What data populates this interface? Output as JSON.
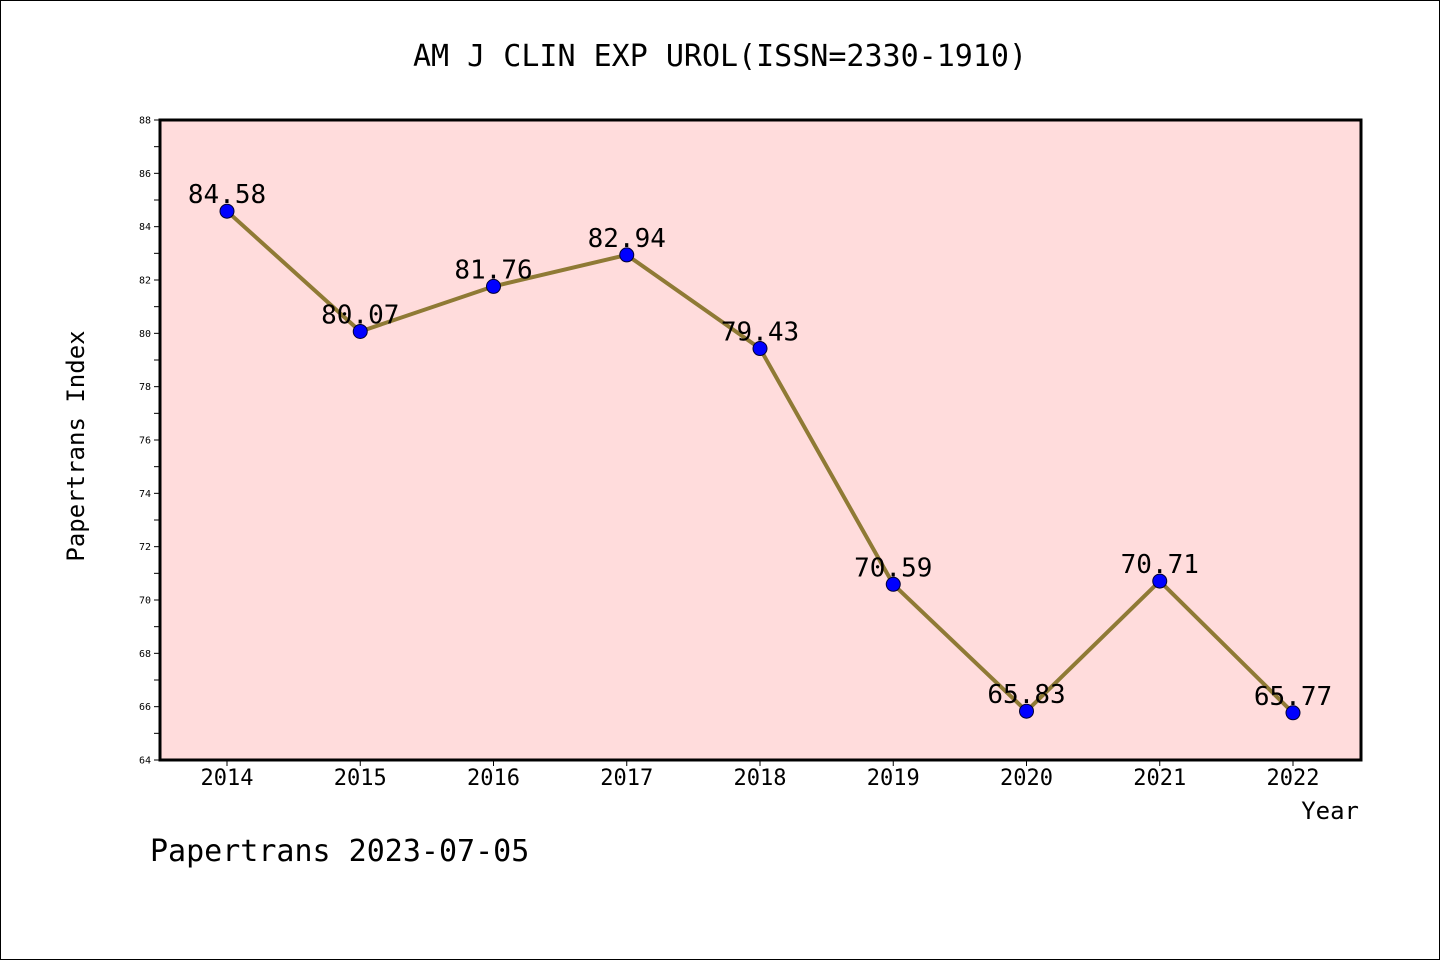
{
  "chart_data": {
    "type": "line",
    "title": "AM J CLIN EXP UROL(ISSN=2330-1910)",
    "xlabel": "Year",
    "ylabel": "Papertrans Index",
    "categories": [
      "2014",
      "2015",
      "2016",
      "2017",
      "2018",
      "2019",
      "2020",
      "2021",
      "2022"
    ],
    "series": [
      {
        "values": [
          84.58,
          80.07,
          81.76,
          82.94,
          79.43,
          70.59,
          65.83,
          70.71,
          65.77
        ],
        "data_labels": [
          "84.58",
          "80.07",
          "81.76",
          "82.94",
          "79.43",
          "70.59",
          "65.83",
          "70.71",
          "65.77"
        ],
        "line_color": "#8f7a35",
        "marker_color": "#0000ff"
      }
    ],
    "ylim": [
      64,
      88
    ],
    "yticks": [
      "64",
      "66",
      "68",
      "70",
      "72",
      "74",
      "76",
      "78",
      "80",
      "82",
      "84",
      "86",
      "88"
    ],
    "plot_background": "#ffdcdc",
    "grid": false,
    "legend": "none"
  },
  "footer": {
    "text": "Papertrans 2023-07-05"
  }
}
